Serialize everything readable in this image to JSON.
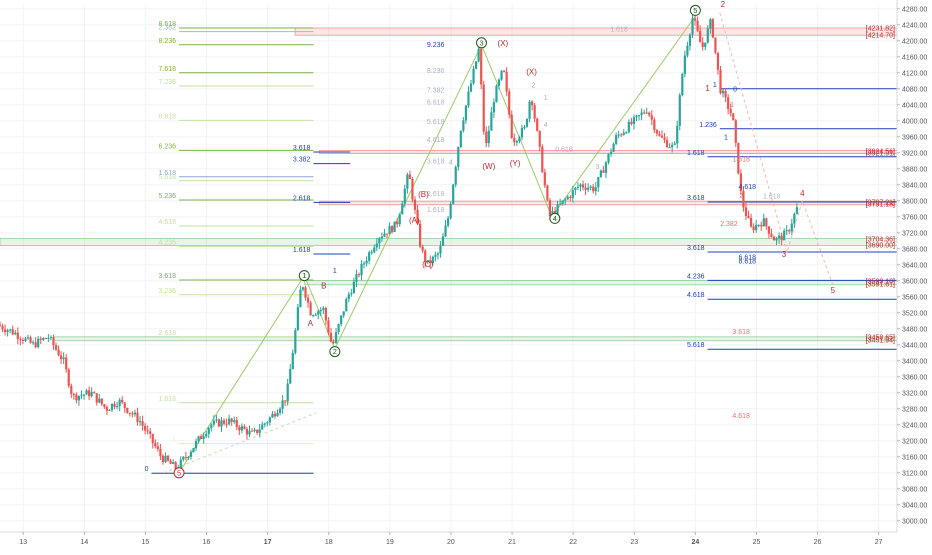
{
  "chart_data": {
    "type": "candlestick",
    "title": "",
    "xlabel": "",
    "ylabel": "",
    "ylim": [
      2972,
      4292
    ],
    "x_range": [
      12.62,
      27.3
    ],
    "colors": {
      "up": "#26a69a",
      "down": "#ef5350",
      "wave_green": "#1e5a1e",
      "fib_green": "#7cb342",
      "fib_blue": "#1f3fbf",
      "fib_red": "#c62828",
      "price_tag": "#c62828"
    },
    "y_ticks": [
      "4280.00",
      "4240.00",
      "4200.00",
      "4160.00",
      "4120.00",
      "4080.00",
      "4040.00",
      "4000.00",
      "3960.00",
      "3920.00",
      "3880.00",
      "3840.00",
      "3800.00",
      "3760.00",
      "3720.00",
      "3680.00",
      "3640.00",
      "3600.00",
      "3560.00",
      "3520.00",
      "3480.00",
      "3440.00",
      "3400.00",
      "3360.00",
      "3320.00",
      "3280.00",
      "3240.00",
      "3200.00",
      "3160.00",
      "3120.00",
      "3080.00",
      "3040.00",
      "3000.00"
    ],
    "y_tick_values": [
      4280,
      4240,
      4200,
      4160,
      4120,
      4080,
      4040,
      4000,
      3960,
      3920,
      3880,
      3840,
      3800,
      3760,
      3720,
      3680,
      3640,
      3600,
      3560,
      3520,
      3480,
      3440,
      3400,
      3360,
      3320,
      3280,
      3240,
      3200,
      3160,
      3120,
      3080,
      3040,
      3000
    ],
    "x_ticks": [
      "13",
      "14",
      "15",
      "16",
      "17",
      "18",
      "19",
      "20",
      "21",
      "22",
      "23",
      "24",
      "25",
      "26",
      "27"
    ],
    "x_tick_values": [
      13,
      14,
      15,
      16,
      17,
      18,
      19,
      20,
      21,
      22,
      23,
      24,
      25,
      26,
      27
    ],
    "x_ticks_bold": [
      "17",
      "24"
    ],
    "price_tags": [
      {
        "label": "[4231.82]",
        "value": 4232
      },
      {
        "label": "[4214.70]",
        "value": 4215
      },
      {
        "label": "[3924.56]",
        "value": 3924
      },
      {
        "label": "[3921.91]",
        "value": 3919
      },
      {
        "label": "[3797.21]",
        "value": 3797
      },
      {
        "label": "[3791.18]",
        "value": 3792
      },
      {
        "label": "[3704.36]",
        "value": 3704
      },
      {
        "label": "[3690.00]",
        "value": 3690
      },
      {
        "label": "[3599.10]",
        "value": 3599
      },
      {
        "label": "[3591.61]",
        "value": 3592
      },
      {
        "label": "[3458.65]",
        "value": 3459
      },
      {
        "label": "[3451.94]",
        "value": 3452
      }
    ],
    "zones": [
      {
        "y1": 4214,
        "y2": 4232,
        "x1": 17.45,
        "x2": 27.3,
        "color": "#e53935"
      },
      {
        "y1": 3918,
        "y2": 3926,
        "x1": 17.85,
        "x2": 27.3,
        "color": "#e53935"
      },
      {
        "y1": 3790,
        "y2": 3799,
        "x1": 17.85,
        "x2": 27.3,
        "color": "#e53935"
      },
      {
        "y1": 3688,
        "y2": 3706,
        "x1": 12.62,
        "x2": 27.3,
        "color": "#43a047"
      },
      {
        "y1": 3590,
        "y2": 3601,
        "x1": 17.6,
        "x2": 27.3,
        "color": "#43a047"
      },
      {
        "y1": 3450,
        "y2": 3460,
        "x1": 13.5,
        "x2": 27.3,
        "color": "#43a047"
      }
    ],
    "fib_levels": [
      {
        "label": "8.618",
        "value": 4232,
        "x1": 15.55,
        "x2": 17.75,
        "color": "#7cb342"
      },
      {
        "label": "2.382",
        "value": 4223,
        "x1": 15.55,
        "x2": 17.75,
        "color": "#aab4c8"
      },
      {
        "label": "8.236",
        "value": 4190,
        "x1": 15.55,
        "x2": 17.75,
        "color": "#7cb342"
      },
      {
        "label": "7.618",
        "value": 4120,
        "x1": 15.55,
        "x2": 17.75,
        "color": "#7cb342"
      },
      {
        "label": "7.236",
        "value": 4087,
        "x1": 15.55,
        "x2": 17.75,
        "color": "#c5e1a5"
      },
      {
        "label": "6.618",
        "value": 4001,
        "x1": 15.55,
        "x2": 17.75,
        "color": "#c5e1a5"
      },
      {
        "label": "6.236",
        "value": 3926,
        "x1": 15.55,
        "x2": 17.75,
        "color": "#7cb342"
      },
      {
        "label": "3.618",
        "value": 3922,
        "x1": 17.75,
        "x2": 18.35,
        "color": "#1f3fbf"
      },
      {
        "label": "3.382",
        "value": 3893,
        "x1": 17.75,
        "x2": 18.35,
        "color": "#1f3fbf"
      },
      {
        "label": "1.618",
        "value": 3860,
        "x1": 15.55,
        "x2": 17.75,
        "color": "#90a4d4"
      },
      {
        "label": "5.618",
        "value": 3850,
        "x1": 15.55,
        "x2": 17.75,
        "color": "#c5e1a5"
      },
      {
        "label": "5.236",
        "value": 3802,
        "x1": 15.55,
        "x2": 17.75,
        "color": "#7cb342"
      },
      {
        "label": "2.618",
        "value": 3796,
        "x1": 17.75,
        "x2": 18.35,
        "color": "#1f3fbf"
      },
      {
        "label": "4.618",
        "value": 3737,
        "x1": 15.55,
        "x2": 17.75,
        "color": "#c5e1a5"
      },
      {
        "label": "4.236",
        "value": 3686,
        "x1": 15.55,
        "x2": 17.75,
        "color": "#c5e1a5"
      },
      {
        "label": "1.618",
        "value": 3667,
        "x1": 17.75,
        "x2": 18.35,
        "color": "#1f3fbf"
      },
      {
        "label": "3.618",
        "value": 3602,
        "x1": 15.55,
        "x2": 17.75,
        "color": "#7cb342"
      },
      {
        "label": "3.236",
        "value": 3565,
        "x1": 15.55,
        "x2": 17.75,
        "color": "#c5e1a5"
      },
      {
        "label": "2.618",
        "value": 3460,
        "x1": 15.55,
        "x2": 17.75,
        "color": "#c5e1a5"
      },
      {
        "label": "1.618",
        "value": 3295,
        "x1": 15.55,
        "x2": 17.75,
        "color": "#c5e1a5"
      },
      {
        "label": "1",
        "value": 3193,
        "x1": 15.55,
        "x2": 17.75,
        "color": "#dcedc8"
      },
      {
        "label": "0",
        "value": 3119,
        "x1": 15.1,
        "x2": 17.75,
        "color": "#1f3fbf"
      },
      {
        "label": "1",
        "value": 4080,
        "x1": 24.4,
        "x2": 27.3,
        "color": "#1f3fbf"
      },
      {
        "label": "1.236",
        "value": 3980,
        "x1": 24.4,
        "x2": 27.3,
        "color": "#1f3fbf"
      },
      {
        "label": "1.618",
        "value": 3910,
        "x1": 24.2,
        "x2": 27.3,
        "color": "#1f3fbf"
      },
      {
        "label": "3.618",
        "value": 3797,
        "x1": 24.2,
        "x2": 27.3,
        "color": "#1f3fbf"
      },
      {
        "label": "3.618",
        "value": 3672,
        "x1": 24.2,
        "x2": 27.3,
        "color": "#1f3fbf"
      },
      {
        "label": "4.236",
        "value": 3601,
        "x1": 24.2,
        "x2": 27.3,
        "color": "#1f3fbf"
      },
      {
        "label": "4.618",
        "value": 3554,
        "x1": 24.2,
        "x2": 27.3,
        "color": "#1f3fbf"
      },
      {
        "label": "5.618",
        "value": 3429,
        "x1": 24.2,
        "x2": 27.3,
        "color": "#1f3fbf"
      }
    ],
    "labels": [
      {
        "text": "9.236",
        "x": 19.75,
        "y": 4184,
        "color": "#1f3fbf"
      },
      {
        "text": "8.236",
        "x": 19.75,
        "y": 4120,
        "color": "#aab4c8"
      },
      {
        "text": "7.382",
        "x": 19.75,
        "y": 4071,
        "color": "#aab4c8"
      },
      {
        "text": "6.618",
        "x": 19.75,
        "y": 4041,
        "color": "#aab4c8"
      },
      {
        "text": "5.618",
        "x": 19.75,
        "y": 3992,
        "color": "#aab4c8"
      },
      {
        "text": "4.618",
        "x": 19.75,
        "y": 3947,
        "color": "#aab4c8"
      },
      {
        "text": "3.618",
        "x": 19.75,
        "y": 3893,
        "color": "#aab4c8"
      },
      {
        "text": "2.618",
        "x": 19.75,
        "y": 3812,
        "color": "#aab4c8"
      },
      {
        "text": "1.618",
        "x": 19.75,
        "y": 3772,
        "color": "#aab4c8"
      },
      {
        "text": "0.618",
        "x": 21.85,
        "y": 3923,
        "color": "#aab4c8"
      },
      {
        "text": "1.618",
        "x": 22.75,
        "y": 4223,
        "color": "#aab4c8"
      },
      {
        "text": "1.618",
        "x": 25.25,
        "y": 3806,
        "color": "#aab4c8"
      },
      {
        "text": "4.618",
        "x": 24.85,
        "y": 3830,
        "color": "#1f3fbf"
      },
      {
        "text": "6.618",
        "x": 24.85,
        "y": 3653,
        "color": "#1f3fbf"
      },
      {
        "text": "8.618",
        "x": 24.85,
        "y": 3643,
        "color": "#1f3fbf"
      },
      {
        "text": "1.618",
        "x": 24.75,
        "y": 3898,
        "color": "#e57373"
      },
      {
        "text": "2.382",
        "x": 24.55,
        "y": 3737,
        "color": "#e57373"
      },
      {
        "text": "3.618",
        "x": 24.75,
        "y": 3467,
        "color": "#e57373"
      },
      {
        "text": "4.618",
        "x": 24.75,
        "y": 3257,
        "color": "#e57373"
      },
      {
        "text": "1",
        "x": 18.1,
        "y": 3620,
        "color": "#1f3fbf"
      },
      {
        "text": "1",
        "x": 24.5,
        "y": 3953,
        "color": "#1f3fbf"
      },
      {
        "text": "0",
        "x": 24.65,
        "y": 4073,
        "color": "#1f3fbf"
      },
      {
        "text": "1",
        "x": 24.6,
        "y": 4034,
        "color": "#e57373"
      },
      {
        "text": "2",
        "x": 24.75,
        "y": 3807,
        "color": "#e57373"
      },
      {
        "text": "4",
        "x": 20.0,
        "y": 3891,
        "color": "#aab4c8"
      },
      {
        "text": "2",
        "x": 21.35,
        "y": 4083,
        "color": "#aab4c8"
      },
      {
        "text": "4",
        "x": 21.55,
        "y": 3985,
        "color": "#aab4c8"
      },
      {
        "text": "3",
        "x": 22.4,
        "y": 3879,
        "color": "#aab4c8"
      },
      {
        "text": "1",
        "x": 22.0,
        "y": 3796,
        "color": "#aab4c8"
      },
      {
        "text": "1",
        "x": 21.55,
        "y": 4052,
        "color": "#aab4c8"
      }
    ],
    "wave_circles": [
      {
        "label": "1",
        "x": 17.6,
        "y": 3613,
        "color": "#1e5a1e"
      },
      {
        "label": "2",
        "x": 18.1,
        "y": 3423,
        "color": "#1e5a1e"
      },
      {
        "label": "3",
        "x": 20.5,
        "y": 4195,
        "color": "#1e5a1e"
      },
      {
        "label": "4",
        "x": 21.7,
        "y": 3756,
        "color": "#1e5a1e"
      },
      {
        "label": "5",
        "x": 24.0,
        "y": 4276,
        "color": "#1e5a1e"
      },
      {
        "label": "5",
        "x": 15.55,
        "y": 3120,
        "color": "#c62828"
      }
    ],
    "wave_text": [
      {
        "text": "A",
        "x": 17.7,
        "y": 3487,
        "color": "#c62828"
      },
      {
        "text": "B",
        "x": 17.92,
        "y": 3581,
        "color": "#c62828"
      },
      {
        "text": "(A)",
        "x": 19.4,
        "y": 3745,
        "color": "#c62828"
      },
      {
        "text": "(B)",
        "x": 19.55,
        "y": 3810,
        "color": "#c62828"
      },
      {
        "text": "(C)",
        "x": 19.62,
        "y": 3634,
        "color": "#c62828"
      },
      {
        "text": "(W)",
        "x": 20.62,
        "y": 3880,
        "color": "#c62828"
      },
      {
        "text": "(X)",
        "x": 20.85,
        "y": 4187,
        "color": "#c62828"
      },
      {
        "text": "(Y)",
        "x": 21.05,
        "y": 3887,
        "color": "#c62828"
      },
      {
        "text": "(X)",
        "x": 21.32,
        "y": 4116,
        "color": "#c62828"
      },
      {
        "text": "2",
        "x": 24.45,
        "y": 4285,
        "color": "#c62828"
      },
      {
        "text": "1",
        "x": 24.2,
        "y": 4074,
        "color": "#c62828"
      },
      {
        "text": "3",
        "x": 25.45,
        "y": 3660,
        "color": "#c62828"
      },
      {
        "text": "4",
        "x": 25.75,
        "y": 3812,
        "color": "#c62828"
      },
      {
        "text": "5",
        "x": 26.25,
        "y": 3569,
        "color": "#c62828"
      }
    ],
    "wave_lines": [
      {
        "points": [
          [
            15.55,
            3120
          ],
          [
            17.6,
            3613
          ],
          [
            18.1,
            3430
          ],
          [
            20.5,
            4190
          ],
          [
            21.65,
            3760
          ],
          [
            24.0,
            4262
          ]
        ],
        "color": "#9ccc65",
        "dash": false
      },
      {
        "points": [
          [
            15.3,
            3120
          ],
          [
            17.8,
            3270
          ]
        ],
        "color": "#c5e1a5",
        "dash": true
      },
      {
        "points": [
          [
            24.4,
            4270
          ],
          [
            25.5,
            3670
          ],
          [
            25.75,
            3800
          ],
          [
            26.25,
            3590
          ]
        ],
        "color": "#f5b7b1",
        "dash": true
      }
    ]
  }
}
